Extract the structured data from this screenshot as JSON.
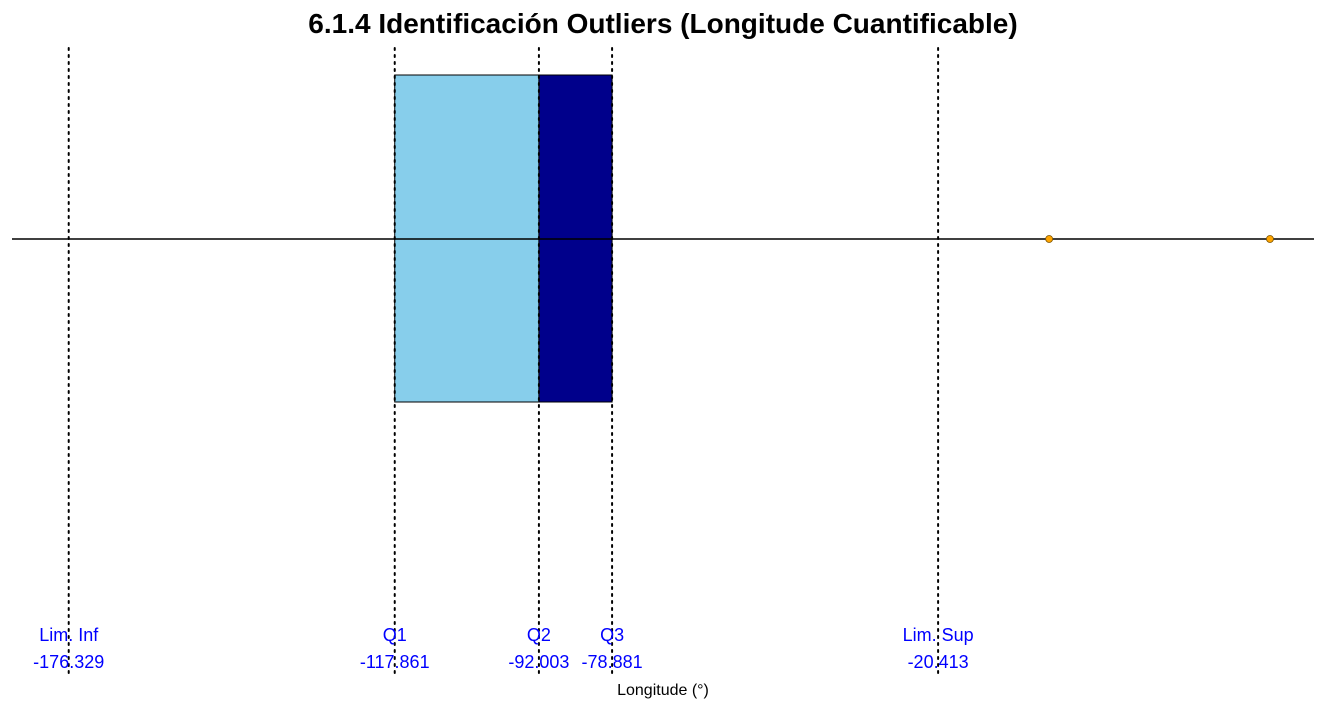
{
  "chart_data": {
    "type": "boxplot",
    "title": "6.1.4 Identificación Outliers (Longitude Cuantificable)",
    "xlabel": "Longitude (°)",
    "xlim": [
      -186.5,
      47.0
    ],
    "quartiles": {
      "q1": -117.861,
      "q2": -92.003,
      "q3": -78.881
    },
    "limits": {
      "lower": -176.329,
      "upper": -20.413
    },
    "whisker": {
      "min": -186.5,
      "max": 47.0
    },
    "outliers": [
      -0.5,
      39.1
    ],
    "markers": [
      {
        "label": "Lim. Inf",
        "value": -176.329,
        "value_text": "-176.329"
      },
      {
        "label": "Q1",
        "value": -117.861,
        "value_text": "-117.861"
      },
      {
        "label": "Q2",
        "value": -92.003,
        "value_text": "-92.003"
      },
      {
        "label": "Q3",
        "value": -78.881,
        "value_text": "-78.881"
      },
      {
        "label": "Lim. Sup",
        "value": -20.413,
        "value_text": "-20.413"
      }
    ],
    "grid": false,
    "colors": {
      "box_lower": "#87ceeb",
      "box_upper": "#00008b",
      "outlier": "#ffa500",
      "marker_text": "#0000ff",
      "reference_line": "#000000"
    }
  }
}
